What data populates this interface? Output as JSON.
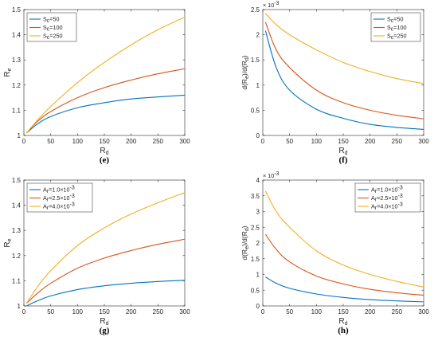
{
  "chart_data": [
    {
      "id": "e",
      "panel_label": "(e)",
      "type": "line",
      "xlabel": {
        "main": "R",
        "sub": "d"
      },
      "ylabel": {
        "main": "R",
        "sub": "e"
      },
      "xlim": [
        0,
        300
      ],
      "ylim": [
        1,
        1.5
      ],
      "xticks": [
        0,
        50,
        100,
        150,
        200,
        250,
        300
      ],
      "yticks": [
        1,
        1.1,
        1.2,
        1.3,
        1.4,
        1.5
      ],
      "ytick_labels": [
        "1",
        "1.1",
        "1.2",
        "1.3",
        "1.4",
        "1.5"
      ],
      "sci_note": null,
      "legend_position": "top-left",
      "x": [
        5,
        25,
        50,
        100,
        150,
        200,
        250,
        300
      ],
      "series": [
        {
          "legend": {
            "main": "S",
            "sub": "c",
            "rest": "=50"
          },
          "color": "#0072BD",
          "values": [
            1.01,
            1.045,
            1.075,
            1.11,
            1.13,
            1.145,
            1.153,
            1.16
          ]
        },
        {
          "legend": {
            "main": "S",
            "sub": "c",
            "rest": "=100"
          },
          "color": "#D95319",
          "values": [
            1.01,
            1.055,
            1.095,
            1.15,
            1.19,
            1.22,
            1.245,
            1.265
          ]
        },
        {
          "legend": {
            "main": "S",
            "sub": "c",
            "rest": "=250"
          },
          "color": "#EDB120",
          "values": [
            1.01,
            1.06,
            1.115,
            1.21,
            1.29,
            1.36,
            1.42,
            1.47
          ]
        }
      ]
    },
    {
      "id": "f",
      "panel_label": "(f)",
      "type": "line",
      "xlabel": {
        "main": "R",
        "sub": "d"
      },
      "ylabel_text": "d(Rₑ)/d(Rᵈ)",
      "ylabel": {
        "main": "d(R",
        "sub": "e",
        "mid": ")/d(R",
        "sub2": "d",
        "end": ")"
      },
      "xlim": [
        0,
        300
      ],
      "ylim": [
        0,
        2.5
      ],
      "xticks": [
        0,
        50,
        100,
        150,
        200,
        250,
        300
      ],
      "yticks": [
        0,
        0.5,
        1,
        1.5,
        2,
        2.5
      ],
      "ytick_labels": [
        "0",
        "0.5",
        "1",
        "1.5",
        "2",
        "2.5"
      ],
      "sci_note": {
        "base": "× 10",
        "exp": "-3"
      },
      "legend_position": "top-right",
      "x": [
        5,
        25,
        50,
        100,
        150,
        200,
        250,
        300
      ],
      "series": [
        {
          "legend": {
            "main": "S",
            "sub": "c",
            "rest": "=50"
          },
          "color": "#0072BD",
          "values": [
            2.08,
            1.35,
            0.9,
            0.52,
            0.34,
            0.22,
            0.16,
            0.12
          ]
        },
        {
          "legend": {
            "main": "S",
            "sub": "c",
            "rest": "=100"
          },
          "color": "#D95319",
          "values": [
            2.25,
            1.7,
            1.35,
            0.9,
            0.65,
            0.5,
            0.4,
            0.33
          ]
        },
        {
          "legend": {
            "main": "S",
            "sub": "c",
            "rest": "=250"
          },
          "color": "#EDB120",
          "values": [
            2.42,
            2.2,
            2.0,
            1.7,
            1.45,
            1.27,
            1.13,
            1.03
          ]
        }
      ]
    },
    {
      "id": "g",
      "panel_label": "(g)",
      "type": "line",
      "xlabel": {
        "main": "R",
        "sub": "d"
      },
      "ylabel": {
        "main": "R",
        "sub": "e"
      },
      "xlim": [
        0,
        300
      ],
      "ylim": [
        1,
        1.5
      ],
      "xticks": [
        0,
        50,
        100,
        150,
        200,
        250,
        300
      ],
      "yticks": [
        1,
        1.1,
        1.2,
        1.3,
        1.4,
        1.5
      ],
      "ytick_labels": [
        "1",
        "1.1",
        "1.2",
        "1.3",
        "1.4",
        "1.5"
      ],
      "sci_note": null,
      "legend_position": "top-left",
      "x": [
        5,
        25,
        50,
        100,
        150,
        200,
        250,
        300
      ],
      "series": [
        {
          "legend": {
            "main": "A",
            "sub": "r",
            "rest": "=1.0×10",
            "exp": "-3"
          },
          "color": "#0072BD",
          "values": [
            1.0,
            1.02,
            1.04,
            1.065,
            1.08,
            1.09,
            1.097,
            1.102
          ]
        },
        {
          "legend": {
            "main": "A",
            "sub": "r",
            "rest": "=2.5×10",
            "exp": "-3"
          },
          "color": "#D95319",
          "values": [
            1.01,
            1.05,
            1.09,
            1.15,
            1.19,
            1.22,
            1.245,
            1.265
          ]
        },
        {
          "legend": {
            "main": "A",
            "sub": "r",
            "rest": "=4.0×10",
            "exp": "-3"
          },
          "color": "#EDB120",
          "values": [
            1.01,
            1.075,
            1.14,
            1.24,
            1.31,
            1.365,
            1.41,
            1.45
          ]
        }
      ]
    },
    {
      "id": "h",
      "panel_label": "(h)",
      "type": "line",
      "xlabel": {
        "main": "R",
        "sub": "d"
      },
      "ylabel": {
        "main": "d(R",
        "sub": "e",
        "mid": ")/d(R",
        "sub2": "d",
        "end": ")"
      },
      "xlim": [
        0,
        300
      ],
      "ylim": [
        0,
        4
      ],
      "xticks": [
        0,
        50,
        100,
        150,
        200,
        250,
        300
      ],
      "yticks": [
        0,
        0.5,
        1,
        1.5,
        2,
        2.5,
        3,
        3.5,
        4
      ],
      "ytick_labels": [
        "0",
        "0.5",
        "1",
        "1.5",
        "2",
        "2.5",
        "3",
        "3.5",
        "4"
      ],
      "sci_note": {
        "base": "× 10",
        "exp": "-3"
      },
      "legend_position": "top-right",
      "x": [
        5,
        25,
        50,
        100,
        150,
        200,
        250,
        300
      ],
      "series": [
        {
          "legend": {
            "main": "A",
            "sub": "r",
            "rest": "=1.0×10",
            "exp": "-3"
          },
          "color": "#0072BD",
          "values": [
            0.92,
            0.72,
            0.56,
            0.38,
            0.27,
            0.2,
            0.16,
            0.13
          ]
        },
        {
          "legend": {
            "main": "A",
            "sub": "r",
            "rest": "=2.5×10",
            "exp": "-3"
          },
          "color": "#D95319",
          "values": [
            2.28,
            1.8,
            1.4,
            0.95,
            0.7,
            0.53,
            0.42,
            0.34
          ]
        },
        {
          "legend": {
            "main": "A",
            "sub": "r",
            "rest": "=4.0×10",
            "exp": "-3"
          },
          "color": "#EDB120",
          "values": [
            3.65,
            3.0,
            2.5,
            1.75,
            1.3,
            1.0,
            0.78,
            0.6
          ]
        }
      ]
    }
  ]
}
